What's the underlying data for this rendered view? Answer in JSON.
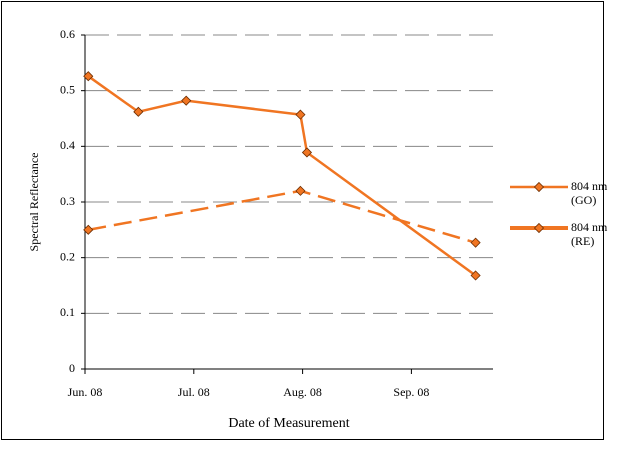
{
  "chart_data": {
    "type": "line",
    "y_label": "Spectral Reflectance",
    "x_label": "Date of Measurement",
    "xlim": [
      6,
      9.75
    ],
    "xticks": [
      {
        "value": 6,
        "label": "Jun. 08"
      },
      {
        "value": 7,
        "label": "Jul. 08"
      },
      {
        "value": 8,
        "label": "Aug. 08"
      },
      {
        "value": 9,
        "label": "Sep. 08"
      }
    ],
    "ylim": [
      0,
      0.6
    ],
    "yticks": [
      0,
      0.1,
      0.2,
      0.3,
      0.4,
      0.5,
      0.6
    ],
    "grid": true,
    "legend": "right",
    "series": [
      {
        "name": "804 nm (GO)",
        "color": "#f07522",
        "dashed": false,
        "x": [
          6.03,
          6.49,
          6.93,
          7.98,
          8.04,
          9.59
        ],
        "values": [
          0.526,
          0.462,
          0.482,
          0.457,
          0.389,
          0.168
        ]
      },
      {
        "name": "804 nm (RE)",
        "color": "#f07522",
        "dashed": true,
        "x": [
          6.03,
          7.98,
          9.59
        ],
        "values": [
          0.25,
          0.32,
          0.227
        ]
      }
    ]
  }
}
